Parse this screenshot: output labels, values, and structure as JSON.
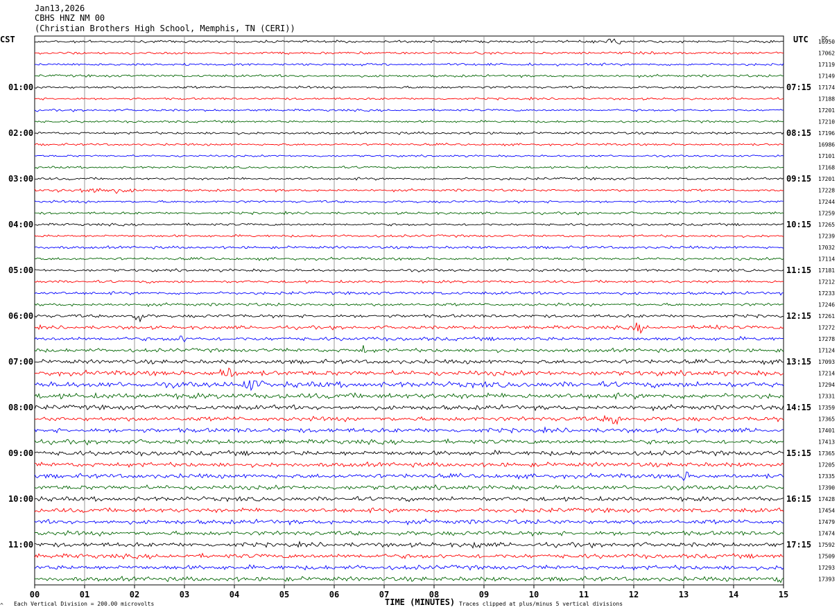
{
  "header": {
    "date": "Jan13,2026",
    "station": "CBHS HNZ NM 00",
    "location": "(Christian Brothers High School, Memphis, TN (CERI))"
  },
  "left_timezone": "CST",
  "right_timezone": "UTC",
  "dc_header": "DC",
  "footer": {
    "left_marker": "^",
    "scale_note": "Each Vertical Division =  200.00 microvolts",
    "clip_note": "Traces clipped at plus/minus 5 vertical divisions"
  },
  "colors": {
    "trace_cycle": [
      "#000000",
      "#ff0000",
      "#0000ff",
      "#006400"
    ],
    "grid": "#808080"
  },
  "chart_data": {
    "type": "line",
    "xlabel": "TIME (MINUTES)",
    "x_ticks": [
      "00",
      "01",
      "02",
      "03",
      "04",
      "05",
      "06",
      "07",
      "08",
      "09",
      "10",
      "11",
      "12",
      "13",
      "14",
      "15"
    ],
    "xlim": [
      0,
      15
    ],
    "left_hour_labels": [
      "01:00",
      "02:00",
      "03:00",
      "04:00",
      "05:00",
      "06:00",
      "07:00",
      "08:00",
      "09:00",
      "10:00",
      "11:00"
    ],
    "right_hour_labels": [
      "07:15",
      "08:15",
      "09:15",
      "10:15",
      "11:15",
      "12:15",
      "13:15",
      "14:15",
      "15:15",
      "16:15",
      "17:15"
    ],
    "traces_per_hour": 4,
    "dc_offsets": [
      16950,
      17062,
      17119,
      17149,
      17174,
      17188,
      17201,
      17210,
      17196,
      16986,
      17101,
      17168,
      17201,
      17228,
      17244,
      17259,
      17265,
      17239,
      17032,
      17114,
      17181,
      17212,
      17233,
      17246,
      17261,
      17272,
      17278,
      17124,
      17093,
      17214,
      17294,
      17331,
      17359,
      17365,
      17401,
      17413,
      17365,
      17205,
      17335,
      17390,
      17428,
      17454,
      17479,
      17474,
      17592,
      17509,
      17293,
      17393
    ],
    "noise_level": [
      1.0,
      1.0,
      1.0,
      1.0,
      1.0,
      0.9,
      0.9,
      0.9,
      1.0,
      0.9,
      0.8,
      0.9,
      1.0,
      1.0,
      1.0,
      1.0,
      1.0,
      1.0,
      1.1,
      1.1,
      1.1,
      1.1,
      1.2,
      1.2,
      1.3,
      1.4,
      1.5,
      1.5,
      1.7,
      2.0,
      2.3,
      2.2,
      1.9,
      1.8,
      1.8,
      1.8,
      1.9,
      1.8,
      1.8,
      1.8,
      1.8,
      1.8,
      1.8,
      1.8,
      1.8,
      1.8,
      1.8,
      1.8
    ],
    "events": [
      {
        "trace": 0,
        "minute": 11.6,
        "amp": 4,
        "width": 0.25
      },
      {
        "trace": 13,
        "minute": 1.2,
        "amp": 3,
        "width": 1.1
      },
      {
        "trace": 24,
        "minute": 2.05,
        "amp": 9,
        "width": 0.2
      },
      {
        "trace": 25,
        "minute": 12.1,
        "amp": 6,
        "width": 0.2
      },
      {
        "trace": 25,
        "minute": 13.55,
        "amp": 5,
        "width": 0.2
      },
      {
        "trace": 26,
        "minute": 2.9,
        "amp": 4,
        "width": 0.2
      },
      {
        "trace": 27,
        "minute": 6.6,
        "amp": 5,
        "width": 0.15
      },
      {
        "trace": 29,
        "minute": 3.85,
        "amp": 7,
        "width": 0.25
      },
      {
        "trace": 30,
        "minute": 4.35,
        "amp": 6,
        "width": 0.3
      },
      {
        "trace": 33,
        "minute": 11.6,
        "amp": 7,
        "width": 0.25
      },
      {
        "trace": 38,
        "minute": 13.0,
        "amp": 5,
        "width": 0.15
      },
      {
        "trace": 44,
        "minute": 8.85,
        "amp": 4,
        "width": 0.15
      },
      {
        "trace": 47,
        "minute": 14.85,
        "amp": 5,
        "width": 0.15
      }
    ]
  }
}
